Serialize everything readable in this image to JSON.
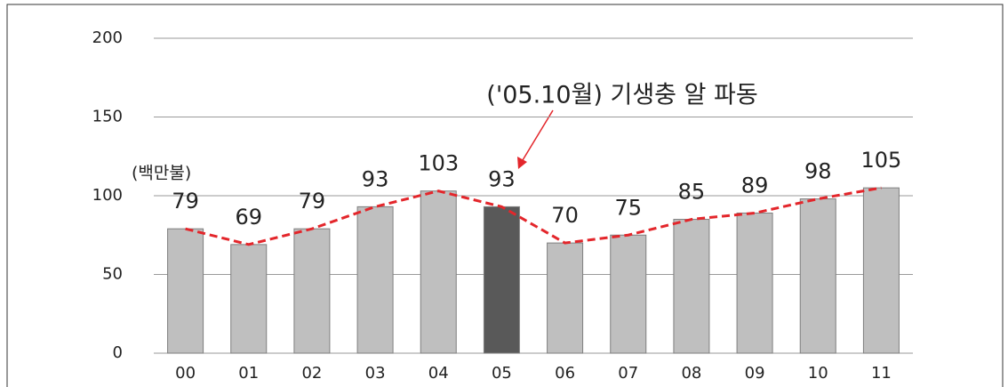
{
  "chart_data": {
    "type": "bar",
    "unit_label": "(백만불)",
    "annotation": "('05.10월) 기생충 알 파동",
    "categories": [
      "00",
      "01",
      "02",
      "03",
      "04",
      "05",
      "06",
      "07",
      "08",
      "09",
      "10",
      "11"
    ],
    "values": [
      79,
      69,
      79,
      93,
      103,
      93,
      70,
      75,
      85,
      89,
      98,
      105
    ],
    "colors": [
      "#bfbfbf",
      "#bfbfbf",
      "#bfbfbf",
      "#bfbfbf",
      "#bfbfbf",
      "#595959",
      "#bfbfbf",
      "#bfbfbf",
      "#bfbfbf",
      "#bfbfbf",
      "#bfbfbf",
      "#bfbfbf"
    ],
    "line_color": "#e3262b",
    "ylim": [
      0,
      200
    ],
    "yticks": [
      0,
      50,
      100,
      150,
      200
    ],
    "grid": true
  }
}
